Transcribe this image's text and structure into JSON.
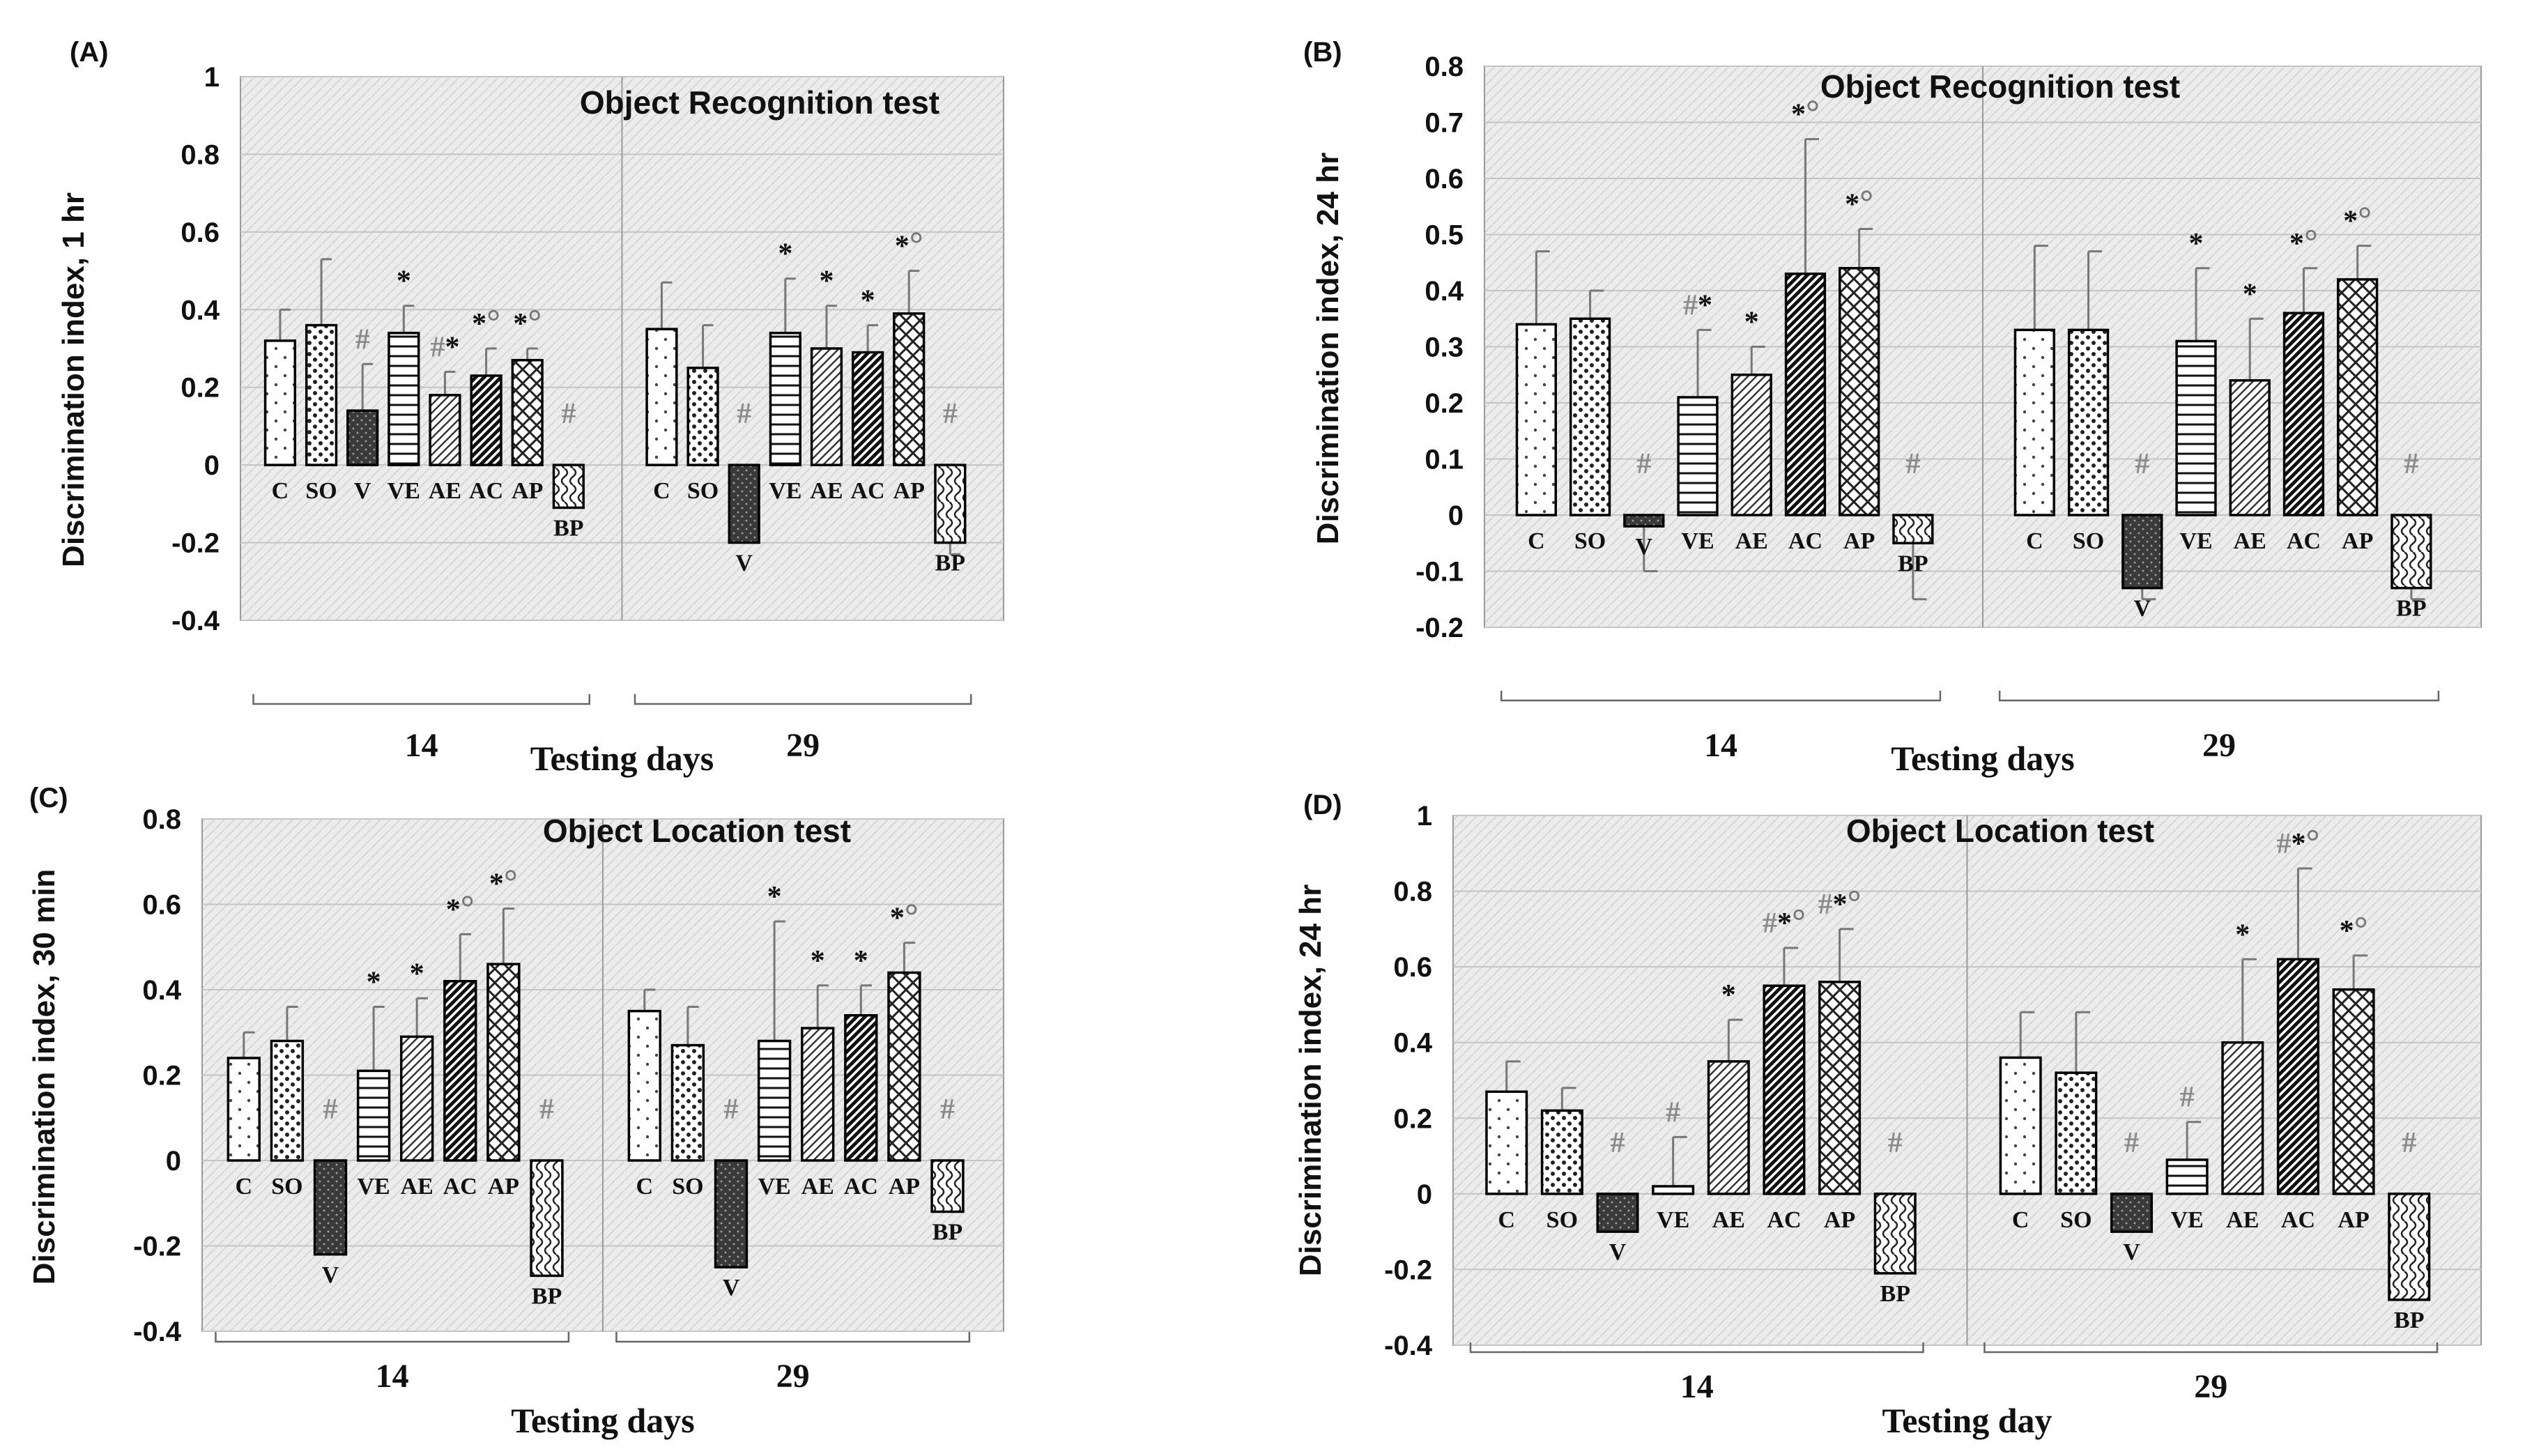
{
  "figure": {
    "categories": [
      "C",
      "SO",
      "V",
      "VE",
      "AE",
      "AC",
      "AP",
      "BP"
    ],
    "colors": {
      "frame": "#9a9a9a",
      "plot_bg": "#e9e9e9",
      "bar_stroke": "#000000",
      "dark_fill": "#3a3a3a",
      "marker_hash": "#8a8a8a",
      "marker_star": "#111111",
      "marker_circle": "#777777"
    }
  },
  "chart_data": [
    {
      "type": "bar",
      "panel": "(A)",
      "title": "Object Recognition test",
      "ylabel": "Discrimination index, 1 hr",
      "xlabel": "Testing days",
      "ylim": [
        -0.4,
        1
      ],
      "yticks": [
        -0.4,
        -0.2,
        0,
        0.2,
        0.4,
        0.6,
        0.8,
        1
      ],
      "ytick_labels": [
        "-0.4",
        "-0.2",
        "0",
        "0.2",
        "0.4",
        "0.6",
        "0.8",
        "1"
      ],
      "groups": [
        {
          "day": "14",
          "values": [
            0.32,
            0.36,
            0.14,
            0.34,
            0.18,
            0.23,
            0.27,
            -0.11
          ],
          "errors": [
            0.08,
            0.17,
            0.12,
            0.07,
            0.06,
            0.07,
            0.03,
            0.0
          ],
          "annotations": [
            "",
            "",
            "#",
            "*",
            "#*",
            "*°",
            "*°",
            "#"
          ]
        },
        {
          "day": "29",
          "values": [
            0.35,
            0.25,
            -0.2,
            0.34,
            0.3,
            0.29,
            0.39,
            -0.2
          ],
          "errors": [
            0.12,
            0.11,
            0.0,
            0.14,
            0.11,
            0.07,
            0.11,
            0.03
          ],
          "annotations": [
            "",
            "",
            "#",
            "*",
            "*",
            "*",
            "*°",
            "#"
          ]
        }
      ]
    },
    {
      "type": "bar",
      "panel": "(B)",
      "title": "Object Recognition test",
      "ylabel": "Discrimination index, 24 hr",
      "xlabel": "Testing days",
      "ylim": [
        -0.2,
        0.8
      ],
      "yticks": [
        -0.2,
        -0.1,
        0,
        0.1,
        0.2,
        0.3,
        0.4,
        0.5,
        0.6,
        0.7,
        0.8
      ],
      "ytick_labels": [
        "-0.2",
        "-0.1",
        "0",
        "0.1",
        "0.2",
        "0.3",
        "0.4",
        "0.5",
        "0.6",
        "0.7",
        "0.8"
      ],
      "groups": [
        {
          "day": "14",
          "values": [
            0.34,
            0.35,
            -0.02,
            0.21,
            0.25,
            0.43,
            0.44,
            -0.05
          ],
          "errors": [
            0.13,
            0.05,
            0.08,
            0.12,
            0.05,
            0.24,
            0.07,
            0.1
          ],
          "annotations": [
            "",
            "",
            "#",
            "#*",
            "*",
            "*°",
            "*°",
            "#"
          ]
        },
        {
          "day": "29",
          "values": [
            0.33,
            0.33,
            -0.13,
            0.31,
            0.24,
            0.36,
            0.42,
            -0.13
          ],
          "errors": [
            0.15,
            0.14,
            0.02,
            0.13,
            0.11,
            0.08,
            0.06,
            0.02
          ],
          "annotations": [
            "",
            "",
            "#",
            "*",
            "*",
            "*°",
            "*°",
            "#"
          ]
        }
      ]
    },
    {
      "type": "bar",
      "panel": "(C)",
      "title": "Object Location test",
      "ylabel": "Discrimination index, 30 min",
      "xlabel": "Testing days",
      "ylim": [
        -0.4,
        0.8
      ],
      "yticks": [
        -0.4,
        -0.2,
        0,
        0.2,
        0.4,
        0.6,
        0.8
      ],
      "ytick_labels": [
        "-0.4",
        "-0.2",
        "0",
        "0.2",
        "0.4",
        "0.6",
        "0.8"
      ],
      "groups": [
        {
          "day": "14",
          "values": [
            0.24,
            0.28,
            -0.22,
            0.21,
            0.29,
            0.42,
            0.46,
            -0.27
          ],
          "errors": [
            0.06,
            0.08,
            0.0,
            0.15,
            0.09,
            0.11,
            0.13,
            0.0
          ],
          "annotations": [
            "",
            "",
            "#",
            "*",
            "*",
            "*°",
            "*°",
            "#"
          ]
        },
        {
          "day": "29",
          "values": [
            0.35,
            0.27,
            -0.25,
            0.28,
            0.31,
            0.34,
            0.44,
            -0.12
          ],
          "errors": [
            0.05,
            0.09,
            0.0,
            0.28,
            0.1,
            0.07,
            0.07,
            0.0
          ],
          "annotations": [
            "",
            "",
            "#",
            "*",
            "*",
            "*",
            "*°",
            "#"
          ]
        }
      ]
    },
    {
      "type": "bar",
      "panel": "(D)",
      "title": "Object Location test",
      "ylabel": "Discrimination index, 24 hr",
      "xlabel": "Testing day",
      "ylim": [
        -0.4,
        1
      ],
      "yticks": [
        -0.4,
        -0.2,
        0,
        0.2,
        0.4,
        0.6,
        0.8,
        1
      ],
      "ytick_labels": [
        "-0.4",
        "-0.2",
        "0",
        "0.2",
        "0.4",
        "0.6",
        "0.8",
        "1"
      ],
      "groups": [
        {
          "day": "14",
          "values": [
            0.27,
            0.22,
            -0.1,
            0.02,
            0.35,
            0.55,
            0.56,
            -0.21
          ],
          "errors": [
            0.08,
            0.06,
            0.0,
            0.13,
            0.11,
            0.1,
            0.14,
            0.0
          ],
          "annotations": [
            "",
            "",
            "#",
            "#",
            "*",
            "#*°",
            "#*°",
            "#"
          ]
        },
        {
          "day": "29",
          "values": [
            0.36,
            0.32,
            -0.1,
            0.09,
            0.4,
            0.62,
            0.54,
            -0.28
          ],
          "errors": [
            0.12,
            0.16,
            0.0,
            0.1,
            0.22,
            0.24,
            0.09,
            0.0
          ],
          "annotations": [
            "",
            "",
            "#",
            "#",
            "*",
            "#*°",
            "*°",
            "#"
          ]
        }
      ]
    }
  ]
}
